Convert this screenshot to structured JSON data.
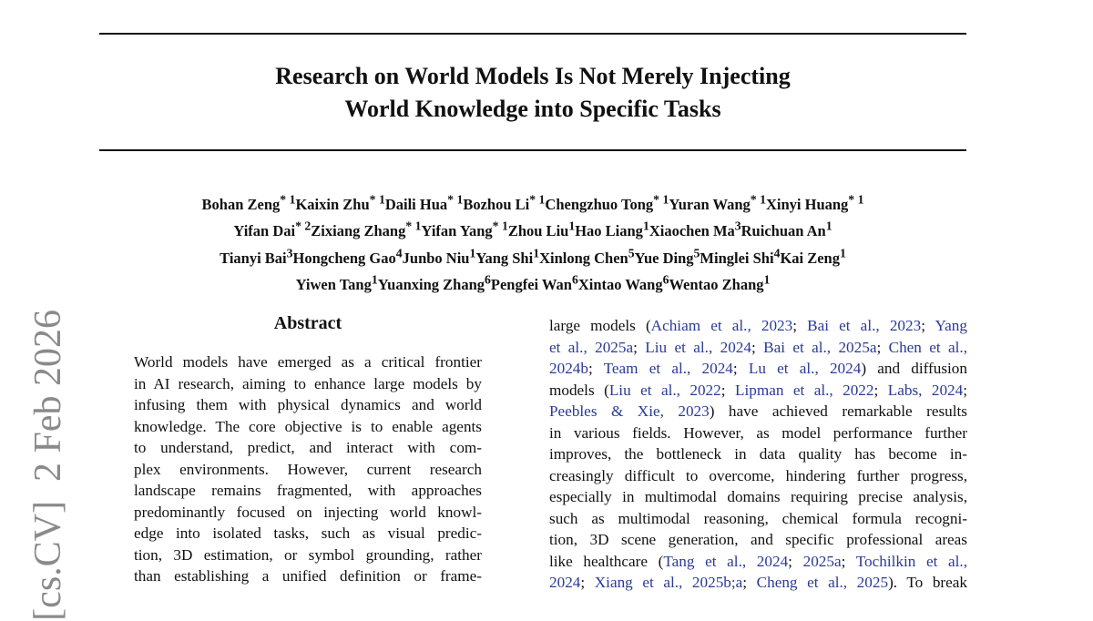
{
  "title_lines": [
    "Research on World Models Is Not Merely Injecting",
    "World Knowledge into Specific Tasks"
  ],
  "author_lines": [
    [
      {
        "name": "Bohan Zeng",
        "aff": "* 1"
      },
      {
        "name": "Kaixin Zhu",
        "aff": "* 1"
      },
      {
        "name": "Daili Hua",
        "aff": "* 1"
      },
      {
        "name": "Bozhou Li",
        "aff": "* 1"
      },
      {
        "name": "Chengzhuo Tong",
        "aff": "* 1"
      },
      {
        "name": "Yuran Wang",
        "aff": "* 1"
      },
      {
        "name": "Xinyi Huang",
        "aff": "* 1"
      }
    ],
    [
      {
        "name": "Yifan Dai",
        "aff": "* 2"
      },
      {
        "name": "Zixiang Zhang",
        "aff": "* 1"
      },
      {
        "name": "Yifan Yang",
        "aff": "* 1"
      },
      {
        "name": "Zhou Liu",
        "aff": "1"
      },
      {
        "name": "Hao Liang",
        "aff": "1"
      },
      {
        "name": "Xiaochen Ma",
        "aff": "3"
      },
      {
        "name": "Ruichuan An",
        "aff": "1"
      }
    ],
    [
      {
        "name": "Tianyi Bai",
        "aff": "3"
      },
      {
        "name": "Hongcheng Gao",
        "aff": "4"
      },
      {
        "name": "Junbo Niu",
        "aff": "1"
      },
      {
        "name": "Yang Shi",
        "aff": "1"
      },
      {
        "name": "Xinlong Chen",
        "aff": "5"
      },
      {
        "name": "Yue Ding",
        "aff": "5"
      },
      {
        "name": "Minglei Shi",
        "aff": "4"
      },
      {
        "name": "Kai Zeng",
        "aff": "1"
      }
    ],
    [
      {
        "name": "Yiwen Tang",
        "aff": "1"
      },
      {
        "name": "Yuanxing Zhang",
        "aff": "6"
      },
      {
        "name": "Pengfei Wan",
        "aff": "6"
      },
      {
        "name": "Xintao Wang",
        "aff": "6"
      },
      {
        "name": "Wentao Zhang",
        "aff": "1"
      }
    ]
  ],
  "abstract_heading": "Abstract",
  "abstract_lines": [
    "World models have emerged as a critical frontier",
    "in AI research, aiming to enhance large models by",
    "infusing them with physical dynamics and world",
    "knowledge. The core objective is to enable agents",
    "to understand, predict, and interact with com-",
    "plex environments.  However, current research",
    "landscape remains fragmented, with approaches",
    "predominantly focused on injecting world knowl-",
    "edge into isolated tasks, such as visual predic-",
    "tion, 3D estimation, or symbol grounding, rather",
    "than establishing a unified definition or frame-"
  ],
  "body_lines": [
    [
      {
        "t": "large models ("
      },
      {
        "t": "Achiam et al., 2023",
        "c": 1
      },
      {
        "t": "; "
      },
      {
        "t": "Bai et al., 2023",
        "c": 1
      },
      {
        "t": "; "
      },
      {
        "t": "Yang",
        "c": 1
      }
    ],
    [
      {
        "t": "et al., 2025a",
        "c": 1
      },
      {
        "t": "; "
      },
      {
        "t": "Liu et al., 2024",
        "c": 1
      },
      {
        "t": "; "
      },
      {
        "t": "Bai et al., 2025a",
        "c": 1
      },
      {
        "t": "; "
      },
      {
        "t": "Chen et al.,",
        "c": 1
      }
    ],
    [
      {
        "t": "2024b",
        "c": 1
      },
      {
        "t": "; "
      },
      {
        "t": "Team et al., 2024",
        "c": 1
      },
      {
        "t": "; "
      },
      {
        "t": "Lu et al., 2024",
        "c": 1
      },
      {
        "t": ") and diffusion"
      }
    ],
    [
      {
        "t": "models ("
      },
      {
        "t": "Liu et al., 2022",
        "c": 1
      },
      {
        "t": "; "
      },
      {
        "t": "Lipman et al., 2022",
        "c": 1
      },
      {
        "t": "; "
      },
      {
        "t": "Labs, 2024",
        "c": 1
      },
      {
        "t": ";"
      }
    ],
    [
      {
        "t": "Peebles & Xie, 2023",
        "c": 1
      },
      {
        "t": ") have achieved remarkable results"
      }
    ],
    [
      {
        "t": "in various fields.  However, as model performance further"
      }
    ],
    [
      {
        "t": "improves, the bottleneck in data quality has become in-"
      }
    ],
    [
      {
        "t": "creasingly difficult to overcome, hindering further progress,"
      }
    ],
    [
      {
        "t": "especially in multimodal domains requiring precise analysis,"
      }
    ],
    [
      {
        "t": "such as multimodal reasoning, chemical formula recogni-"
      }
    ],
    [
      {
        "t": "tion, 3D scene generation, and specific professional areas"
      }
    ],
    [
      {
        "t": "like healthcare ("
      },
      {
        "t": "Tang et al., 2024",
        "c": 1
      },
      {
        "t": "; "
      },
      {
        "t": "2025a",
        "c": 1
      },
      {
        "t": "; "
      },
      {
        "t": "Tochilkin et al.,",
        "c": 1
      }
    ],
    [
      {
        "t": "2024",
        "c": 1
      },
      {
        "t": "; "
      },
      {
        "t": "Xiang et al., 2025b;a",
        "c": 1
      },
      {
        "t": "; "
      },
      {
        "t": "Cheng et al., 2025",
        "c": 1
      },
      {
        "t": ").  To break"
      }
    ]
  ],
  "watermark": "[cs.CV]  2 Feb 2026",
  "colors": {
    "citation": "#2b3a96",
    "watermark": "#8a8a8a"
  }
}
